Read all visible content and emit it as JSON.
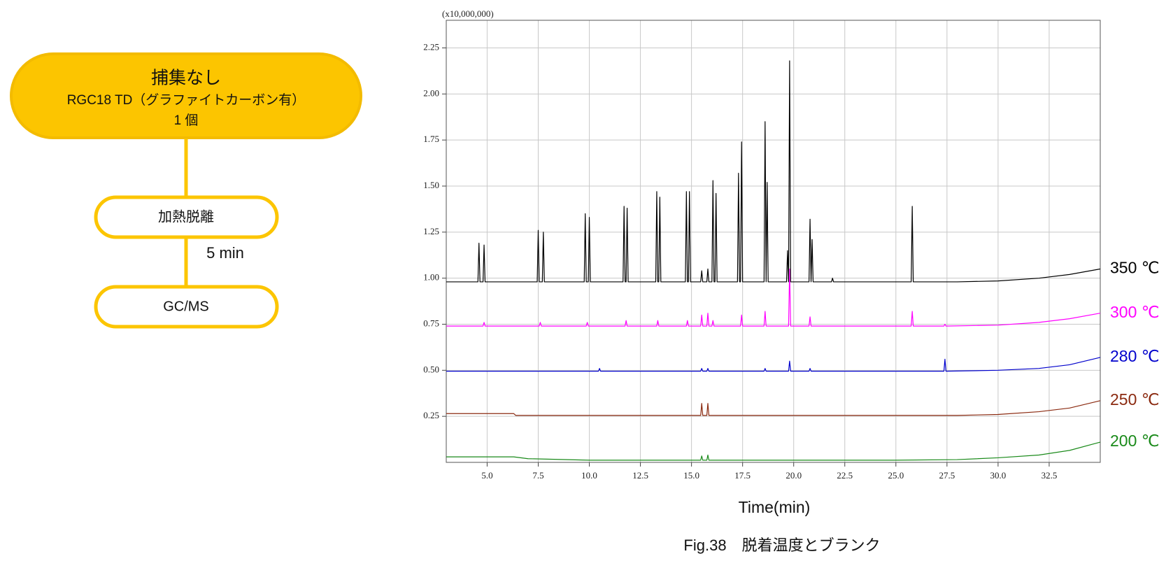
{
  "flowchart": {
    "nodes": [
      {
        "lines": [
          "捕集なし",
          "RGC18 TD（グラファイトカーボン有）",
          "1 個"
        ]
      },
      {
        "label": "加熱脱離"
      },
      {
        "label": "GC/MS"
      }
    ],
    "edges": [
      {
        "label": "5 min"
      }
    ]
  },
  "chart_data": {
    "type": "line",
    "y_multiplier": "(x10,000,000)",
    "xlabel": "Time(min)",
    "caption": "Fig.38　脱着温度とブランク",
    "xlim": [
      3,
      35
    ],
    "ylim": [
      0,
      2.4
    ],
    "xticks": [
      {
        "value": 5,
        "label": "5.0"
      },
      7.5,
      {
        "value": 10,
        "label": "10.0"
      },
      12.5,
      {
        "value": 15,
        "label": "15.0"
      },
      17.5,
      {
        "value": 20,
        "label": "20.0"
      },
      22.5,
      {
        "value": 25,
        "label": "25.0"
      },
      27.5,
      {
        "value": 30,
        "label": "30.0"
      },
      32.5
    ],
    "yticks": [
      0.25,
      {
        "value": 0.5,
        "label": "0.50"
      },
      0.75,
      {
        "value": 1,
        "label": "1.00"
      },
      1.25,
      {
        "value": 1.5,
        "label": "1.50"
      },
      1.75,
      {
        "value": 2,
        "label": "2.00"
      },
      2.25
    ],
    "grid": true,
    "series": [
      {
        "name": "350 ℃",
        "color": "#000000",
        "x": [
          3,
          4.55,
          4.6,
          4.65,
          4.8,
          4.85,
          4.9,
          7.45,
          7.5,
          7.55,
          7.7,
          7.75,
          7.8,
          9.75,
          9.8,
          9.85,
          9.95,
          10.0,
          10.05,
          11.65,
          11.7,
          11.75,
          11.8,
          11.85,
          11.9,
          13.25,
          13.3,
          13.35,
          13.4,
          13.45,
          13.5,
          14.7,
          14.75,
          14.8,
          14.85,
          14.9,
          14.95,
          15.45,
          15.5,
          15.55,
          15.75,
          15.8,
          15.85,
          16.0,
          16.05,
          16.1,
          16.15,
          16.2,
          16.25,
          17.25,
          17.3,
          17.35,
          17.4,
          17.45,
          17.5,
          18.55,
          18.6,
          18.65,
          18.7,
          18.75,
          19.65,
          19.7,
          19.75,
          19.8,
          19.85,
          20.75,
          20.8,
          20.85,
          20.9,
          20.95,
          21.85,
          21.9,
          21.95,
          25.75,
          25.8,
          25.85,
          28,
          30,
          32,
          33.5,
          35
        ],
        "values": [
          0.98,
          0.98,
          1.19,
          0.98,
          0.98,
          1.18,
          0.98,
          0.98,
          1.26,
          0.98,
          0.98,
          1.25,
          0.98,
          0.98,
          1.35,
          0.98,
          0.98,
          1.33,
          0.98,
          0.98,
          1.39,
          0.98,
          0.98,
          1.38,
          0.98,
          0.98,
          1.47,
          0.98,
          0.98,
          1.44,
          0.98,
          0.98,
          1.47,
          0.98,
          0.98,
          1.47,
          0.98,
          0.98,
          1.04,
          0.98,
          0.98,
          1.05,
          0.98,
          0.98,
          1.53,
          0.98,
          0.98,
          1.46,
          0.98,
          0.98,
          1.57,
          0.98,
          0.98,
          1.74,
          0.98,
          0.98,
          1.85,
          0.98,
          1.52,
          0.98,
          0.98,
          1.15,
          0.98,
          2.18,
          0.98,
          0.98,
          1.32,
          0.98,
          1.21,
          0.98,
          0.98,
          1.0,
          0.98,
          0.98,
          1.39,
          0.98,
          0.98,
          0.985,
          1.0,
          1.02,
          1.05
        ]
      },
      {
        "name": "300 ℃",
        "color": "#ff00ff",
        "x": [
          3,
          4.8,
          4.85,
          4.9,
          7.55,
          7.6,
          7.65,
          9.85,
          9.9,
          9.95,
          11.75,
          11.8,
          11.85,
          13.3,
          13.35,
          13.4,
          14.75,
          14.8,
          14.85,
          15.45,
          15.5,
          15.55,
          15.75,
          15.8,
          15.85,
          16.0,
          16.05,
          16.1,
          17.4,
          17.45,
          17.5,
          18.55,
          18.6,
          18.65,
          19.75,
          19.8,
          19.85,
          20.75,
          20.8,
          20.85,
          25.75,
          25.8,
          25.85,
          27.35,
          27.4,
          27.45,
          30,
          32,
          33.5,
          35
        ],
        "values": [
          0.74,
          0.74,
          0.76,
          0.74,
          0.74,
          0.76,
          0.74,
          0.74,
          0.76,
          0.74,
          0.74,
          0.77,
          0.74,
          0.74,
          0.77,
          0.74,
          0.74,
          0.77,
          0.74,
          0.74,
          0.8,
          0.74,
          0.74,
          0.81,
          0.74,
          0.74,
          0.77,
          0.74,
          0.74,
          0.8,
          0.74,
          0.74,
          0.82,
          0.74,
          0.74,
          1.05,
          0.74,
          0.74,
          0.79,
          0.74,
          0.74,
          0.82,
          0.74,
          0.74,
          0.75,
          0.74,
          0.745,
          0.76,
          0.78,
          0.81
        ]
      },
      {
        "name": "280 ℃",
        "color": "#0000cc",
        "x": [
          3,
          10.45,
          10.5,
          10.55,
          15.45,
          15.5,
          15.55,
          15.75,
          15.8,
          15.85,
          18.55,
          18.6,
          18.65,
          19.75,
          19.8,
          19.85,
          20.75,
          20.8,
          20.85,
          27.35,
          27.4,
          27.45,
          30,
          32,
          33.5,
          35
        ],
        "values": [
          0.495,
          0.495,
          0.51,
          0.495,
          0.495,
          0.51,
          0.495,
          0.495,
          0.51,
          0.495,
          0.495,
          0.51,
          0.495,
          0.495,
          0.55,
          0.495,
          0.495,
          0.51,
          0.495,
          0.495,
          0.56,
          0.495,
          0.5,
          0.51,
          0.53,
          0.57
        ]
      },
      {
        "name": "250 ℃",
        "color": "#8b2a10",
        "x": [
          3,
          6.3,
          6.4,
          15.45,
          15.5,
          15.55,
          15.75,
          15.8,
          15.85,
          28,
          30,
          32,
          33.5,
          35
        ],
        "values": [
          0.265,
          0.265,
          0.255,
          0.255,
          0.32,
          0.255,
          0.255,
          0.32,
          0.255,
          0.255,
          0.26,
          0.275,
          0.295,
          0.335
        ]
      },
      {
        "name": "200 ℃",
        "color": "#1a8a1a",
        "x": [
          3,
          6.3,
          7.0,
          10,
          15.45,
          15.5,
          15.55,
          15.75,
          15.8,
          15.85,
          25,
          28,
          30,
          32,
          33.5,
          35
        ],
        "values": [
          0.03,
          0.03,
          0.02,
          0.012,
          0.012,
          0.035,
          0.012,
          0.012,
          0.04,
          0.012,
          0.012,
          0.015,
          0.025,
          0.04,
          0.065,
          0.11
        ]
      }
    ]
  }
}
